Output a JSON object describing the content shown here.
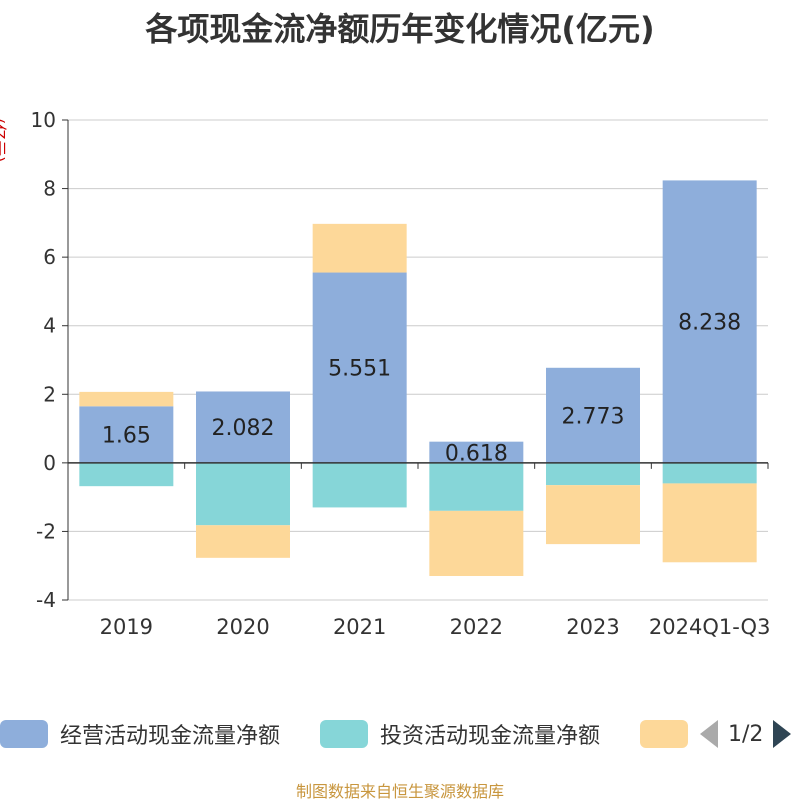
{
  "title": "各项现金流净额历年变化情况(亿元)",
  "y_unit": "(亿元)",
  "source": "制图数据来自恒生聚源数据库",
  "legend": {
    "items": [
      {
        "label": "经营活动现金流量净额",
        "color": "#8eaedb"
      },
      {
        "label": "投资活动现金流量净额",
        "color": "#86d6d8"
      },
      {
        "label": "",
        "color": "#fdd899"
      }
    ],
    "pager": "1/2"
  },
  "chart_data": {
    "type": "bar",
    "stacked": true,
    "categories": [
      "2019",
      "2020",
      "2021",
      "2022",
      "2023",
      "2024Q1-Q3"
    ],
    "ylim": [
      -4,
      10
    ],
    "yticks": [
      -4,
      -2,
      0,
      2,
      4,
      6,
      8,
      10
    ],
    "grid": true,
    "legend_position": "bottom",
    "series": [
      {
        "name": "经营活动现金流量净额",
        "color": "#8eaedb",
        "values": [
          1.65,
          2.082,
          5.551,
          0.618,
          2.773,
          8.238
        ],
        "labels": [
          "1.65",
          "2.082",
          "5.551",
          "0.618",
          "2.773",
          "8.238"
        ]
      },
      {
        "name": "投资活动现金流量净额",
        "color": "#86d6d8",
        "values": [
          -0.68,
          -1.82,
          -1.3,
          -1.4,
          -0.65,
          -0.6
        ]
      },
      {
        "color": "#fdd899",
        "values": [
          0.42,
          -0.95,
          1.42,
          -1.9,
          -1.72,
          -2.3
        ]
      }
    ]
  }
}
